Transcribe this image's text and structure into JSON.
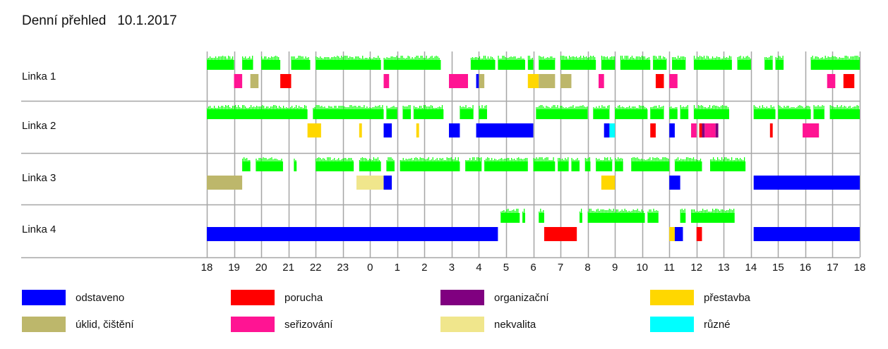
{
  "title": "Denní přehled",
  "date": "10.1.2017",
  "chart_data": {
    "type": "gantt",
    "lines": [
      "Linka 1",
      "Linka 2",
      "Linka 3",
      "Linka 4"
    ],
    "x_ticks": [
      "18",
      "19",
      "20",
      "21",
      "22",
      "23",
      "0",
      "1",
      "2",
      "3",
      "4",
      "5",
      "6",
      "7",
      "8",
      "9",
      "10",
      "11",
      "12",
      "13",
      "14",
      "15",
      "16",
      "17",
      "18"
    ],
    "x_range_hours": [
      0,
      24
    ],
    "grid": true,
    "activity_color": "#00ff00",
    "activity": [
      [
        [
          0,
          1.0
        ],
        [
          1.3,
          1.7
        ],
        [
          2.0,
          2.7
        ],
        [
          3.1,
          3.8
        ],
        [
          4.0,
          6.4
        ],
        [
          6.5,
          8.6
        ],
        [
          9.7,
          10.6
        ],
        [
          10.7,
          11.7
        ],
        [
          11.8,
          12.0
        ],
        [
          12.2,
          12.8
        ],
        [
          13.0,
          14.3
        ],
        [
          14.5,
          15.0
        ],
        [
          15.2,
          16.3
        ],
        [
          16.4,
          16.9
        ],
        [
          17.1,
          17.6
        ],
        [
          17.9,
          19.3
        ],
        [
          19.5,
          20.0
        ],
        [
          20.5,
          20.8
        ],
        [
          20.9,
          21.2
        ],
        [
          22.2,
          24.0
        ]
      ],
      [
        [
          0,
          3.7
        ],
        [
          3.9,
          6.5
        ],
        [
          6.6,
          7.0
        ],
        [
          7.2,
          7.5
        ],
        [
          7.6,
          8.7
        ],
        [
          9.3,
          9.8
        ],
        [
          10.0,
          10.3
        ],
        [
          12.1,
          14.0
        ],
        [
          14.2,
          14.8
        ],
        [
          15.0,
          16.2
        ],
        [
          16.3,
          16.8
        ],
        [
          17.0,
          17.3
        ],
        [
          17.4,
          17.7
        ],
        [
          17.9,
          19.2
        ],
        [
          20.1,
          20.9
        ],
        [
          21.0,
          22.2
        ],
        [
          22.3,
          22.7
        ],
        [
          22.9,
          24.0
        ]
      ],
      [
        [
          1.3,
          1.6
        ],
        [
          1.8,
          2.8
        ],
        [
          3.2,
          3.3
        ],
        [
          4.0,
          5.4
        ],
        [
          5.6,
          6.4
        ],
        [
          6.6,
          6.9
        ],
        [
          7.1,
          9.3
        ],
        [
          9.5,
          10.1
        ],
        [
          10.2,
          11.8
        ],
        [
          12.0,
          12.8
        ],
        [
          12.9,
          13.3
        ],
        [
          13.4,
          13.7
        ],
        [
          13.9,
          14.1
        ],
        [
          14.3,
          14.9
        ],
        [
          15.0,
          15.3
        ],
        [
          15.6,
          17.0
        ],
        [
          17.2,
          18.2
        ],
        [
          18.5,
          19.8
        ]
      ],
      [
        [
          10.8,
          11.5
        ],
        [
          11.6,
          11.7
        ],
        [
          12.2,
          12.4
        ],
        [
          13.7,
          13.8
        ],
        [
          14.0,
          16.1
        ],
        [
          16.2,
          16.6
        ],
        [
          17.4,
          17.6
        ],
        [
          17.8,
          19.4
        ]
      ]
    ],
    "events": [
      [
        [
          "seřizování",
          1.0,
          1.3
        ],
        [
          "úklid, čištění",
          1.6,
          1.9
        ],
        [
          "porucha",
          2.7,
          3.1
        ],
        [
          "seřizování",
          6.5,
          6.7
        ],
        [
          "seřizování",
          8.9,
          9.6
        ],
        [
          "odstaveno",
          9.9,
          10.0
        ],
        [
          "úklid, čištění",
          10.0,
          10.2
        ],
        [
          "přestavba",
          11.8,
          12.2
        ],
        [
          "úklid, čištění",
          12.2,
          12.8
        ],
        [
          "úklid, čištění",
          13.0,
          13.4
        ],
        [
          "seřizování",
          14.4,
          14.6
        ],
        [
          "porucha",
          16.5,
          16.8
        ],
        [
          "seřizování",
          17.0,
          17.3
        ],
        [
          "seřizování",
          22.8,
          23.1
        ],
        [
          "porucha",
          23.4,
          23.8
        ]
      ],
      [
        [
          "přestavba",
          3.7,
          4.2
        ],
        [
          "přestavba",
          5.6,
          5.7
        ],
        [
          "odstaveno",
          6.5,
          6.8
        ],
        [
          "přestavba",
          7.7,
          7.8
        ],
        [
          "odstaveno",
          8.9,
          9.3
        ],
        [
          "odstaveno",
          9.9,
          12.0
        ],
        [
          "odstaveno",
          14.6,
          14.8
        ],
        [
          "různé",
          14.8,
          15.0
        ],
        [
          "porucha",
          16.3,
          16.5
        ],
        [
          "odstaveno",
          17.0,
          17.2
        ],
        [
          "seřizování",
          17.8,
          18.0
        ],
        [
          "porucha",
          18.1,
          18.2
        ],
        [
          "organizační",
          18.2,
          18.3
        ],
        [
          "seřizování",
          18.3,
          18.5
        ],
        [
          "seřizování",
          18.5,
          18.7
        ],
        [
          "organizační",
          18.7,
          18.8
        ],
        [
          "porucha",
          20.7,
          20.8
        ],
        [
          "seřizování",
          21.9,
          22.5
        ]
      ],
      [
        [
          "úklid, čištění",
          0,
          1.3
        ],
        [
          "nekvalita",
          5.5,
          6.5
        ],
        [
          "odstaveno",
          6.5,
          6.8
        ],
        [
          "přestavba",
          14.5,
          15.0
        ],
        [
          "odstaveno",
          17.0,
          17.4
        ],
        [
          "odstaveno",
          20.1,
          24.0
        ]
      ],
      [
        [
          "odstaveno",
          0,
          10.7
        ],
        [
          "porucha",
          12.4,
          13.6
        ],
        [
          "přestavba",
          17.0,
          17.2
        ],
        [
          "odstaveno",
          17.2,
          17.5
        ],
        [
          "porucha",
          18.0,
          18.2
        ],
        [
          "odstaveno",
          20.1,
          24.0
        ]
      ]
    ],
    "legend": [
      {
        "label": "odstaveno",
        "color": "#0000ff"
      },
      {
        "label": "porucha",
        "color": "#ff0000"
      },
      {
        "label": "organizační",
        "color": "#800080"
      },
      {
        "label": "přestavba",
        "color": "#ffd700"
      },
      {
        "label": "úklid, čištění",
        "color": "#bdb76b"
      },
      {
        "label": "seřizování",
        "color": "#ff1493"
      },
      {
        "label": "nekvalita",
        "color": "#f0e68c"
      },
      {
        "label": "různé",
        "color": "#00ffff"
      }
    ]
  }
}
